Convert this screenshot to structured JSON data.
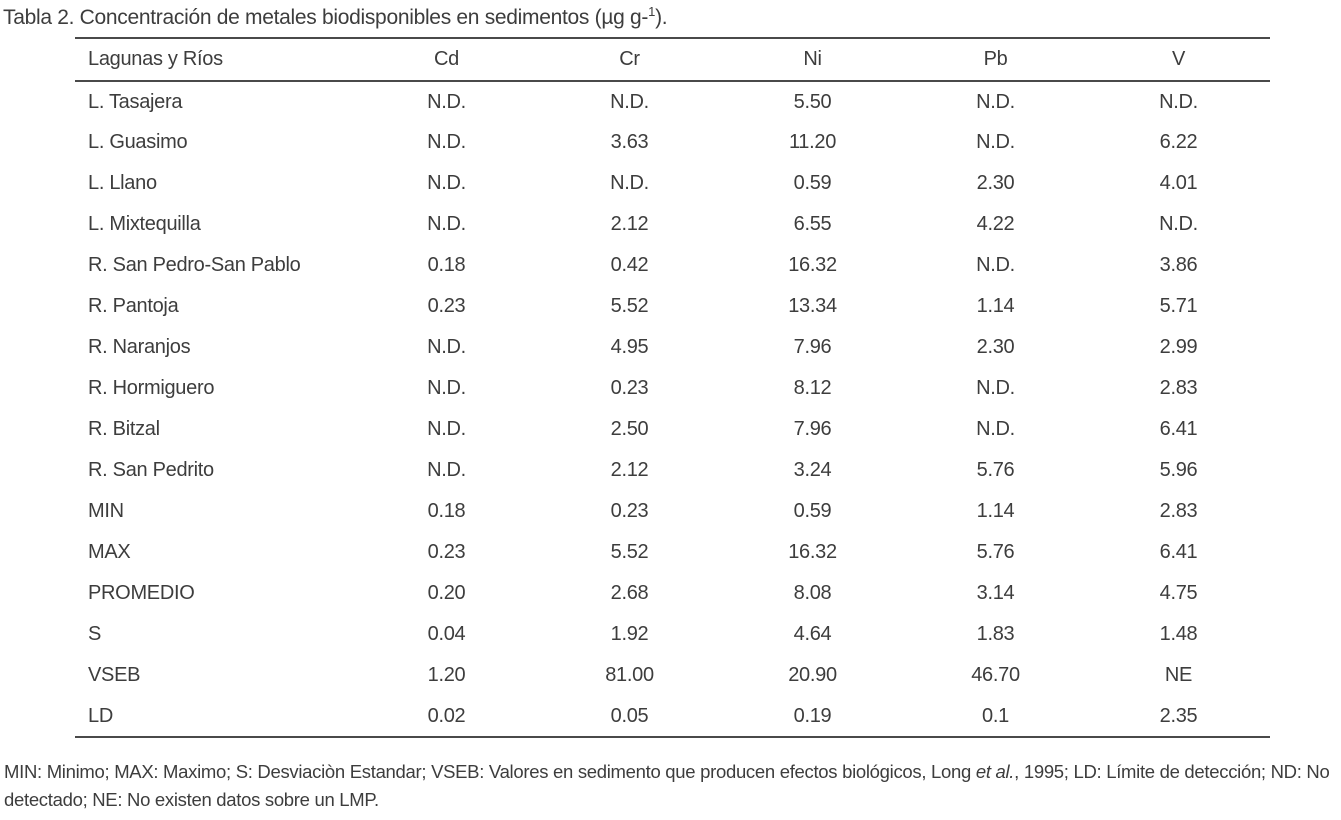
{
  "page": {
    "title": {
      "main": "Tabla 2. Concentración de metales biodisponibles en sedimentos (µg g-",
      "sup": "1",
      "suffix": ")."
    },
    "table": {
      "columns": [
        "Lagunas y Ríos",
        "Cd",
        "Cr",
        "Ni",
        "Pb",
        "V"
      ],
      "rows": [
        {
          "label": "L. Tasajera",
          "values": [
            "N.D.",
            "N.D.",
            "5.50",
            "N.D.",
            "N.D."
          ]
        },
        {
          "label": "L. Guasimo",
          "values": [
            "N.D.",
            "3.63",
            "11.20",
            "N.D.",
            "6.22"
          ]
        },
        {
          "label": "L. Llano",
          "values": [
            "N.D.",
            "N.D.",
            "0.59",
            "2.30",
            "4.01"
          ]
        },
        {
          "label": "L. Mixtequilla",
          "values": [
            "N.D.",
            "2.12",
            "6.55",
            "4.22",
            "N.D."
          ]
        },
        {
          "label": "R. San Pedro-San Pablo",
          "values": [
            "0.18",
            "0.42",
            "16.32",
            "N.D.",
            "3.86"
          ]
        },
        {
          "label": "R. Pantoja",
          "values": [
            "0.23",
            "5.52",
            "13.34",
            "1.14",
            "5.71"
          ]
        },
        {
          "label": "R. Naranjos",
          "values": [
            "N.D.",
            "4.95",
            "7.96",
            "2.30",
            "2.99"
          ]
        },
        {
          "label": "R. Hormiguero",
          "values": [
            "N.D.",
            "0.23",
            "8.12",
            "N.D.",
            "2.83"
          ]
        },
        {
          "label": "R. Bitzal",
          "values": [
            "N.D.",
            "2.50",
            "7.96",
            "N.D.",
            "6.41"
          ]
        },
        {
          "label": "R. San Pedrito",
          "values": [
            "N.D.",
            "2.12",
            "3.24",
            "5.76",
            "5.96"
          ]
        },
        {
          "label": "MIN",
          "values": [
            "0.18",
            "0.23",
            "0.59",
            "1.14",
            "2.83"
          ]
        },
        {
          "label": "MAX",
          "values": [
            "0.23",
            "5.52",
            "16.32",
            "5.76",
            "6.41"
          ]
        },
        {
          "label": "PROMEDIO",
          "values": [
            "0.20",
            "2.68",
            "8.08",
            "3.14",
            "4.75"
          ]
        },
        {
          "label": "S",
          "values": [
            "0.04",
            "1.92",
            "4.64",
            "1.83",
            "1.48"
          ]
        },
        {
          "label": "VSEB",
          "values": [
            "1.20",
            "81.00",
            "20.90",
            "46.70",
            "NE"
          ]
        },
        {
          "label": "LD",
          "values": [
            "0.02",
            "0.05",
            "0.19",
            "0.1",
            "2.35"
          ]
        }
      ]
    },
    "footnote": {
      "segments": [
        {
          "text": "MIN: Minimo; MAX: Maximo; S: Desviaciòn Estandar; VSEB: Valores en sedimento que producen efectos biológicos, Long ",
          "italic": false
        },
        {
          "text": "et al.",
          "italic": true
        },
        {
          "text": ", 1995; LD: Límite de detección; ND: No detectado; NE: No existen datos sobre un LMP.",
          "italic": false
        }
      ]
    },
    "colors": {
      "text": "#3d3d3d",
      "rule": "#4a4a4a",
      "background": "#ffffff"
    }
  }
}
